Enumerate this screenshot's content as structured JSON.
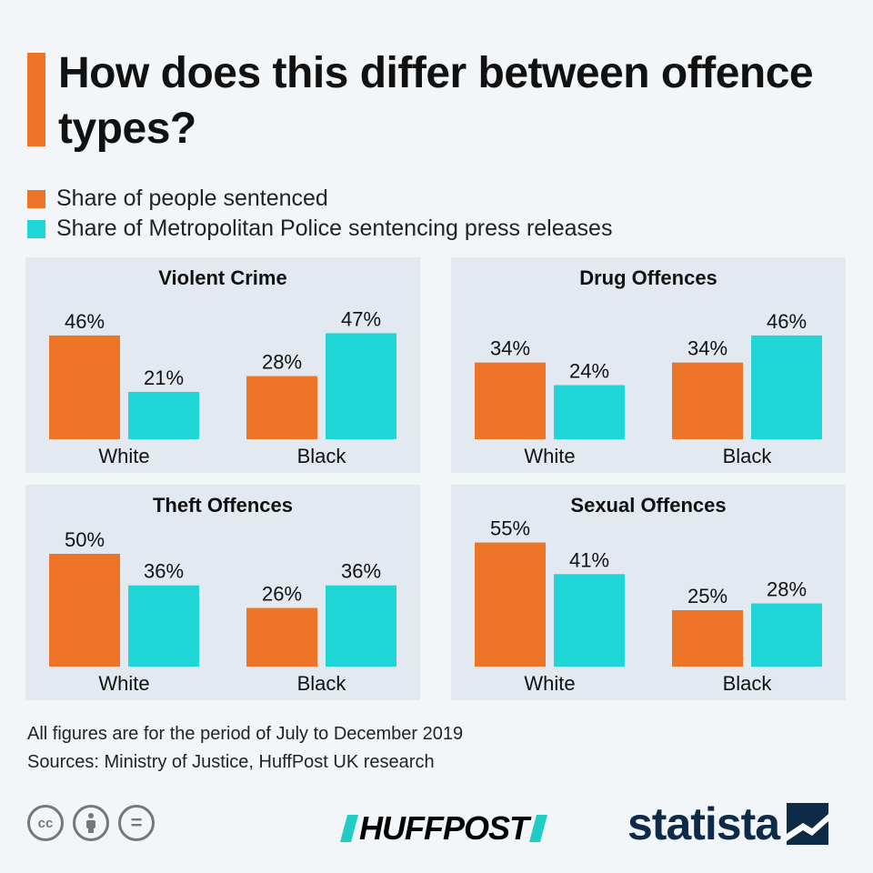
{
  "title": "How does this differ between offence types?",
  "colors": {
    "sentenced": "#ee7528",
    "press": "#1fd5d6",
    "accent": "#ee7528"
  },
  "legend": [
    {
      "label": "Share of people sentenced",
      "color": "#ee7528"
    },
    {
      "label": "Share of Metropolitan Police sentencing press releases",
      "color": "#1fd5d6"
    }
  ],
  "chart_data": [
    {
      "type": "bar",
      "title": "Violent Crime",
      "categories": [
        "White",
        "Black"
      ],
      "series": [
        {
          "name": "Share of people sentenced",
          "values": [
            46,
            28
          ],
          "labels": [
            "46%",
            "28%"
          ]
        },
        {
          "name": "Share of Metropolitan Police sentencing press releases",
          "values": [
            21,
            47
          ],
          "labels": [
            "21%",
            "47%"
          ]
        }
      ],
      "ylim": [
        0,
        100
      ]
    },
    {
      "type": "bar",
      "title": "Drug Offences",
      "categories": [
        "White",
        "Black"
      ],
      "series": [
        {
          "name": "Share of people sentenced",
          "values": [
            34,
            34
          ],
          "labels": [
            "34%",
            "34%"
          ]
        },
        {
          "name": "Share of Metropolitan Police sentencing press releases",
          "values": [
            24,
            46
          ],
          "labels": [
            "24%",
            "46%"
          ]
        }
      ],
      "ylim": [
        0,
        100
      ]
    },
    {
      "type": "bar",
      "title": "Theft Offences",
      "categories": [
        "White",
        "Black"
      ],
      "series": [
        {
          "name": "Share of people sentenced",
          "values": [
            50,
            26
          ],
          "labels": [
            "50%",
            "26%"
          ]
        },
        {
          "name": "Share of Metropolitan Police sentencing press releases",
          "values": [
            36,
            36
          ],
          "labels": [
            "36%",
            "36%"
          ]
        }
      ],
      "ylim": [
        0,
        100
      ]
    },
    {
      "type": "bar",
      "title": "Sexual Offences",
      "categories": [
        "White",
        "Black"
      ],
      "series": [
        {
          "name": "Share of people sentenced",
          "values": [
            55,
            25
          ],
          "labels": [
            "55%",
            "25%"
          ]
        },
        {
          "name": "Share of Metropolitan Police sentencing press releases",
          "values": [
            41,
            28
          ],
          "labels": [
            "41%",
            "28%"
          ]
        }
      ],
      "ylim": [
        0,
        100
      ]
    }
  ],
  "footnote": {
    "period": "All figures are for the period of July to December 2019",
    "sources": "Sources: Ministry of Justice, HuffPost UK research"
  },
  "license_icons": [
    {
      "icon": "creative-commons-icon",
      "text": "cc"
    },
    {
      "icon": "attribution-icon",
      "text": ""
    },
    {
      "icon": "no-derivatives-icon",
      "text": "="
    }
  ],
  "logos": {
    "huffpost": "HUFFPOST",
    "statista": "statista"
  }
}
